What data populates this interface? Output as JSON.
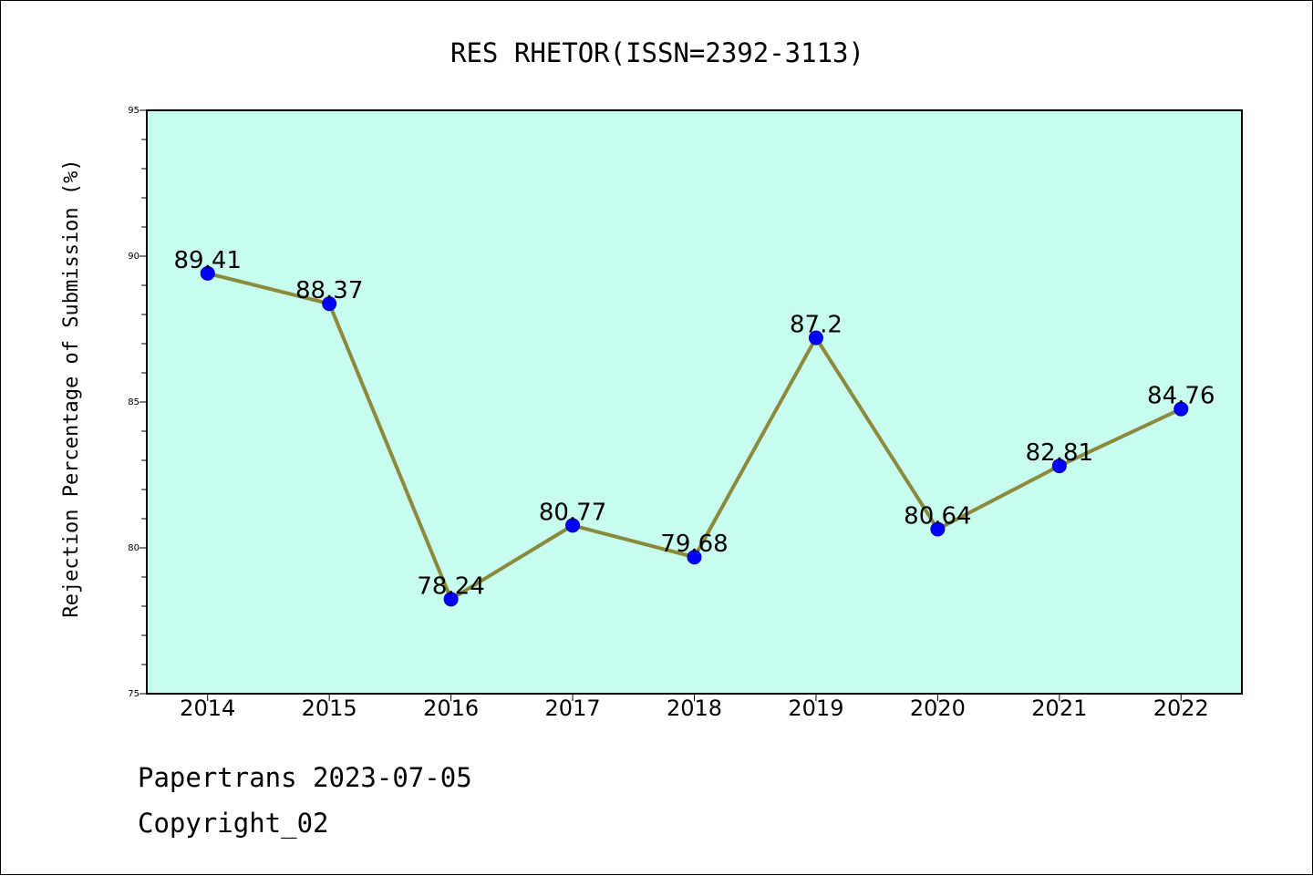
{
  "chart_data": {
    "type": "line",
    "title": "RES RHETOR(ISSN=2392-3113)",
    "xlabel": "",
    "ylabel": "Rejection Percentage of Submission (%)",
    "categories": [
      "2014",
      "2015",
      "2016",
      "2017",
      "2018",
      "2019",
      "2020",
      "2021",
      "2022"
    ],
    "series": [
      {
        "values": [
          89.41,
          88.37,
          78.24,
          80.77,
          79.68,
          87.2,
          80.64,
          82.81,
          84.76
        ],
        "labels": [
          "89.41",
          "88.37",
          "78.24",
          "80.77",
          "79.68",
          "87.2",
          "80.64",
          "82.81",
          "84.76"
        ]
      }
    ],
    "ylim": [
      75,
      95
    ],
    "yticks": [
      "75",
      "80",
      "85",
      "90",
      "95"
    ],
    "grid": false,
    "colors": {
      "plot_background": "#c8fcee",
      "line": "#8b8a3c",
      "marker": "#0000ff"
    }
  },
  "footer": {
    "line1": "Papertrans 2023-07-05",
    "line2": "Copyright_02"
  }
}
